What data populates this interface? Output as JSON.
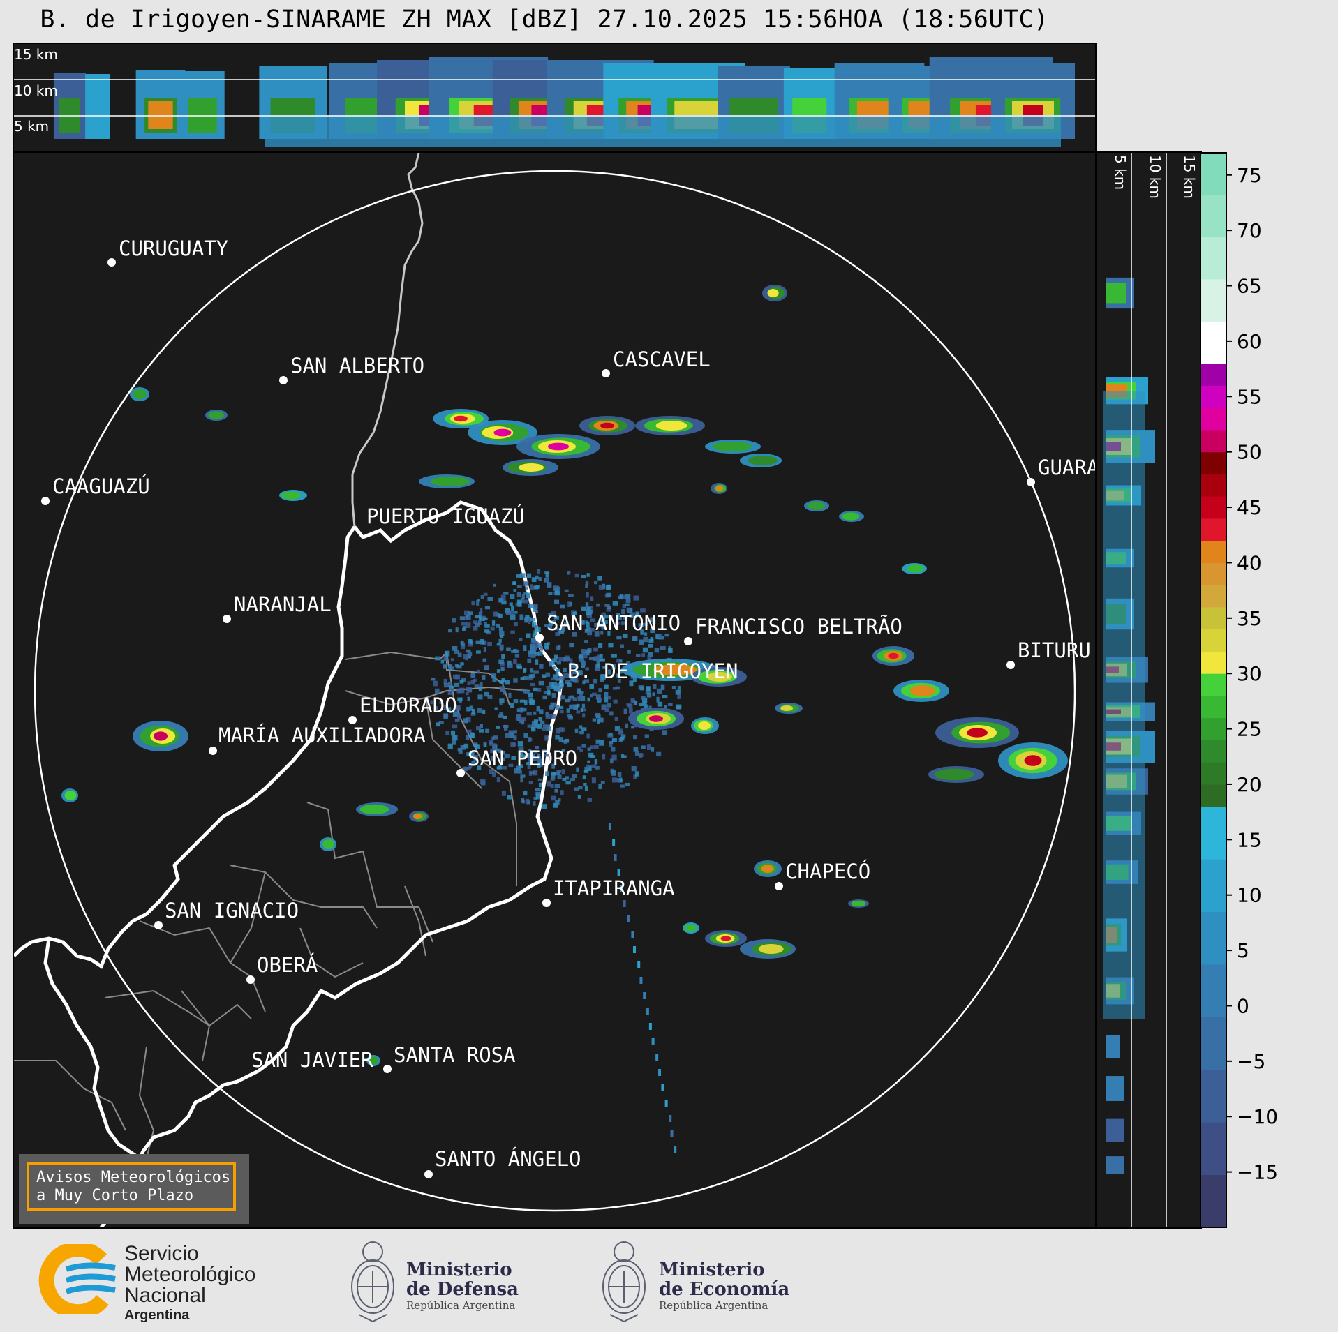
{
  "title": "B. de Irigoyen-SINARAME ZH MAX [dBZ] 27.10.2025 15:56HOA (18:56UTC)",
  "top_panel": {
    "km_labels": [
      "15 km",
      "10 km",
      "5 km"
    ]
  },
  "side_panel": {
    "km_labels": [
      "5 km",
      "10 km",
      "15 km"
    ]
  },
  "colorbar": {
    "ticks": [
      "75",
      "70",
      "65",
      "60",
      "55",
      "50",
      "45",
      "40",
      "35",
      "30",
      "25",
      "20",
      "15",
      "10",
      "5",
      "0",
      "−5",
      "−10",
      "−15"
    ],
    "range_dbz": [
      -20,
      77
    ],
    "bands": [
      {
        "from": -20,
        "to": 18,
        "colors": [
          "#3a3d6a",
          "#3e4f86",
          "#3b5f96",
          "#3870a6",
          "#357eb4",
          "#2f8fc0",
          "#2ba2cd",
          "#2db6da"
        ]
      },
      {
        "from": 18,
        "to": 30,
        "colors": [
          "#2e6b25",
          "#2d7a27",
          "#2f8a2b",
          "#32a02f",
          "#38b833",
          "#45d13a"
        ]
      },
      {
        "from": 30,
        "to": 42,
        "colors": [
          "#f0e63c",
          "#d9d33a",
          "#c8c238",
          "#d2a83a",
          "#d99630",
          "#e0841c"
        ]
      },
      {
        "from": 42,
        "to": 58,
        "colors": [
          "#e0162d",
          "#c5001a",
          "#a8000d",
          "#7e0000",
          "#c90060",
          "#e000a0",
          "#d000c0",
          "#a000a8"
        ]
      },
      {
        "from": 58,
        "to": 77,
        "colors": [
          "#ffffff",
          "#d8f3e6",
          "#b8ecd6",
          "#98e3c6",
          "#80dcbb"
        ]
      }
    ]
  },
  "map": {
    "radar_site": "B. DE IRIGOYEN",
    "cities": [
      {
        "name": "CURUGUATY"
      },
      {
        "name": "SAN ALBERTO"
      },
      {
        "name": "CASCAVEL"
      },
      {
        "name": "CAAGUAZÚ"
      },
      {
        "name": "GUARA"
      },
      {
        "name": "PUERTO IGUAZÚ"
      },
      {
        "name": "NARANJAL"
      },
      {
        "name": "SAN ANTONIO"
      },
      {
        "name": "FRANCISCO BELTRÃO"
      },
      {
        "name": "BITURU"
      },
      {
        "name": "B. DE IRIGOYEN"
      },
      {
        "name": "ELDORADO"
      },
      {
        "name": "MARÍA AUXILIADORA"
      },
      {
        "name": "SAN PEDRO"
      },
      {
        "name": "CHAPECÓ"
      },
      {
        "name": "ITAPIRANGA"
      },
      {
        "name": "SAN IGNACIO"
      },
      {
        "name": "OBERÁ"
      },
      {
        "name": "SAN JAVIER"
      },
      {
        "name": "SANTA ROSA"
      },
      {
        "name": "SANTO ÁNGELO"
      }
    ]
  },
  "notice": {
    "line1": "Avisos Meteorológicos",
    "line2": "a Muy Corto Plazo"
  },
  "logos": {
    "smn": {
      "line1": "Servicio",
      "line2": "Meteorológico",
      "line3": "Nacional",
      "line4": "Argentina",
      "color_blue": "#1e9ad6",
      "color_orange": "#f7a600"
    },
    "defensa": {
      "line1": "Ministerio",
      "line2": "de Defensa",
      "line3": "República Argentina"
    },
    "economia": {
      "line1": "Ministerio",
      "line2": "de Economía",
      "line3": "República Argentina"
    }
  }
}
